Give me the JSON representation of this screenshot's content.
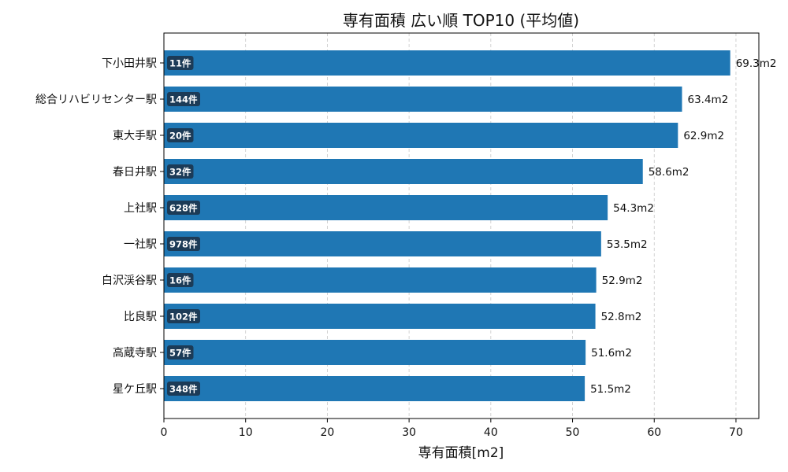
{
  "chart_data": {
    "type": "bar",
    "orientation": "horizontal",
    "title": "専有面積 広い順 TOP10 (平均値)",
    "xlabel": "専有面積[m2]",
    "ylabel": "",
    "xlim": [
      0,
      72.8
    ],
    "xticks": [
      0,
      10,
      20,
      30,
      40,
      50,
      60,
      70
    ],
    "grid": "x-dashed",
    "bar_color": "#1f77b4",
    "badge_color": "#1c3b57",
    "categories": [
      "下小田井駅",
      "総合リハビリセンター駅",
      "東大手駅",
      "春日井駅",
      "上社駅",
      "一社駅",
      "白沢渓谷駅",
      "比良駅",
      "高蔵寺駅",
      "星ケ丘駅"
    ],
    "values": [
      69.3,
      63.4,
      62.9,
      58.6,
      54.3,
      53.5,
      52.9,
      52.8,
      51.6,
      51.5
    ],
    "value_labels": [
      "69.3m2",
      "63.4m2",
      "62.9m2",
      "58.6m2",
      "54.3m2",
      "53.5m2",
      "52.9m2",
      "52.8m2",
      "51.6m2",
      "51.5m2"
    ],
    "count_labels": [
      "11件",
      "144件",
      "20件",
      "32件",
      "628件",
      "978件",
      "16件",
      "102件",
      "57件",
      "348件"
    ]
  }
}
